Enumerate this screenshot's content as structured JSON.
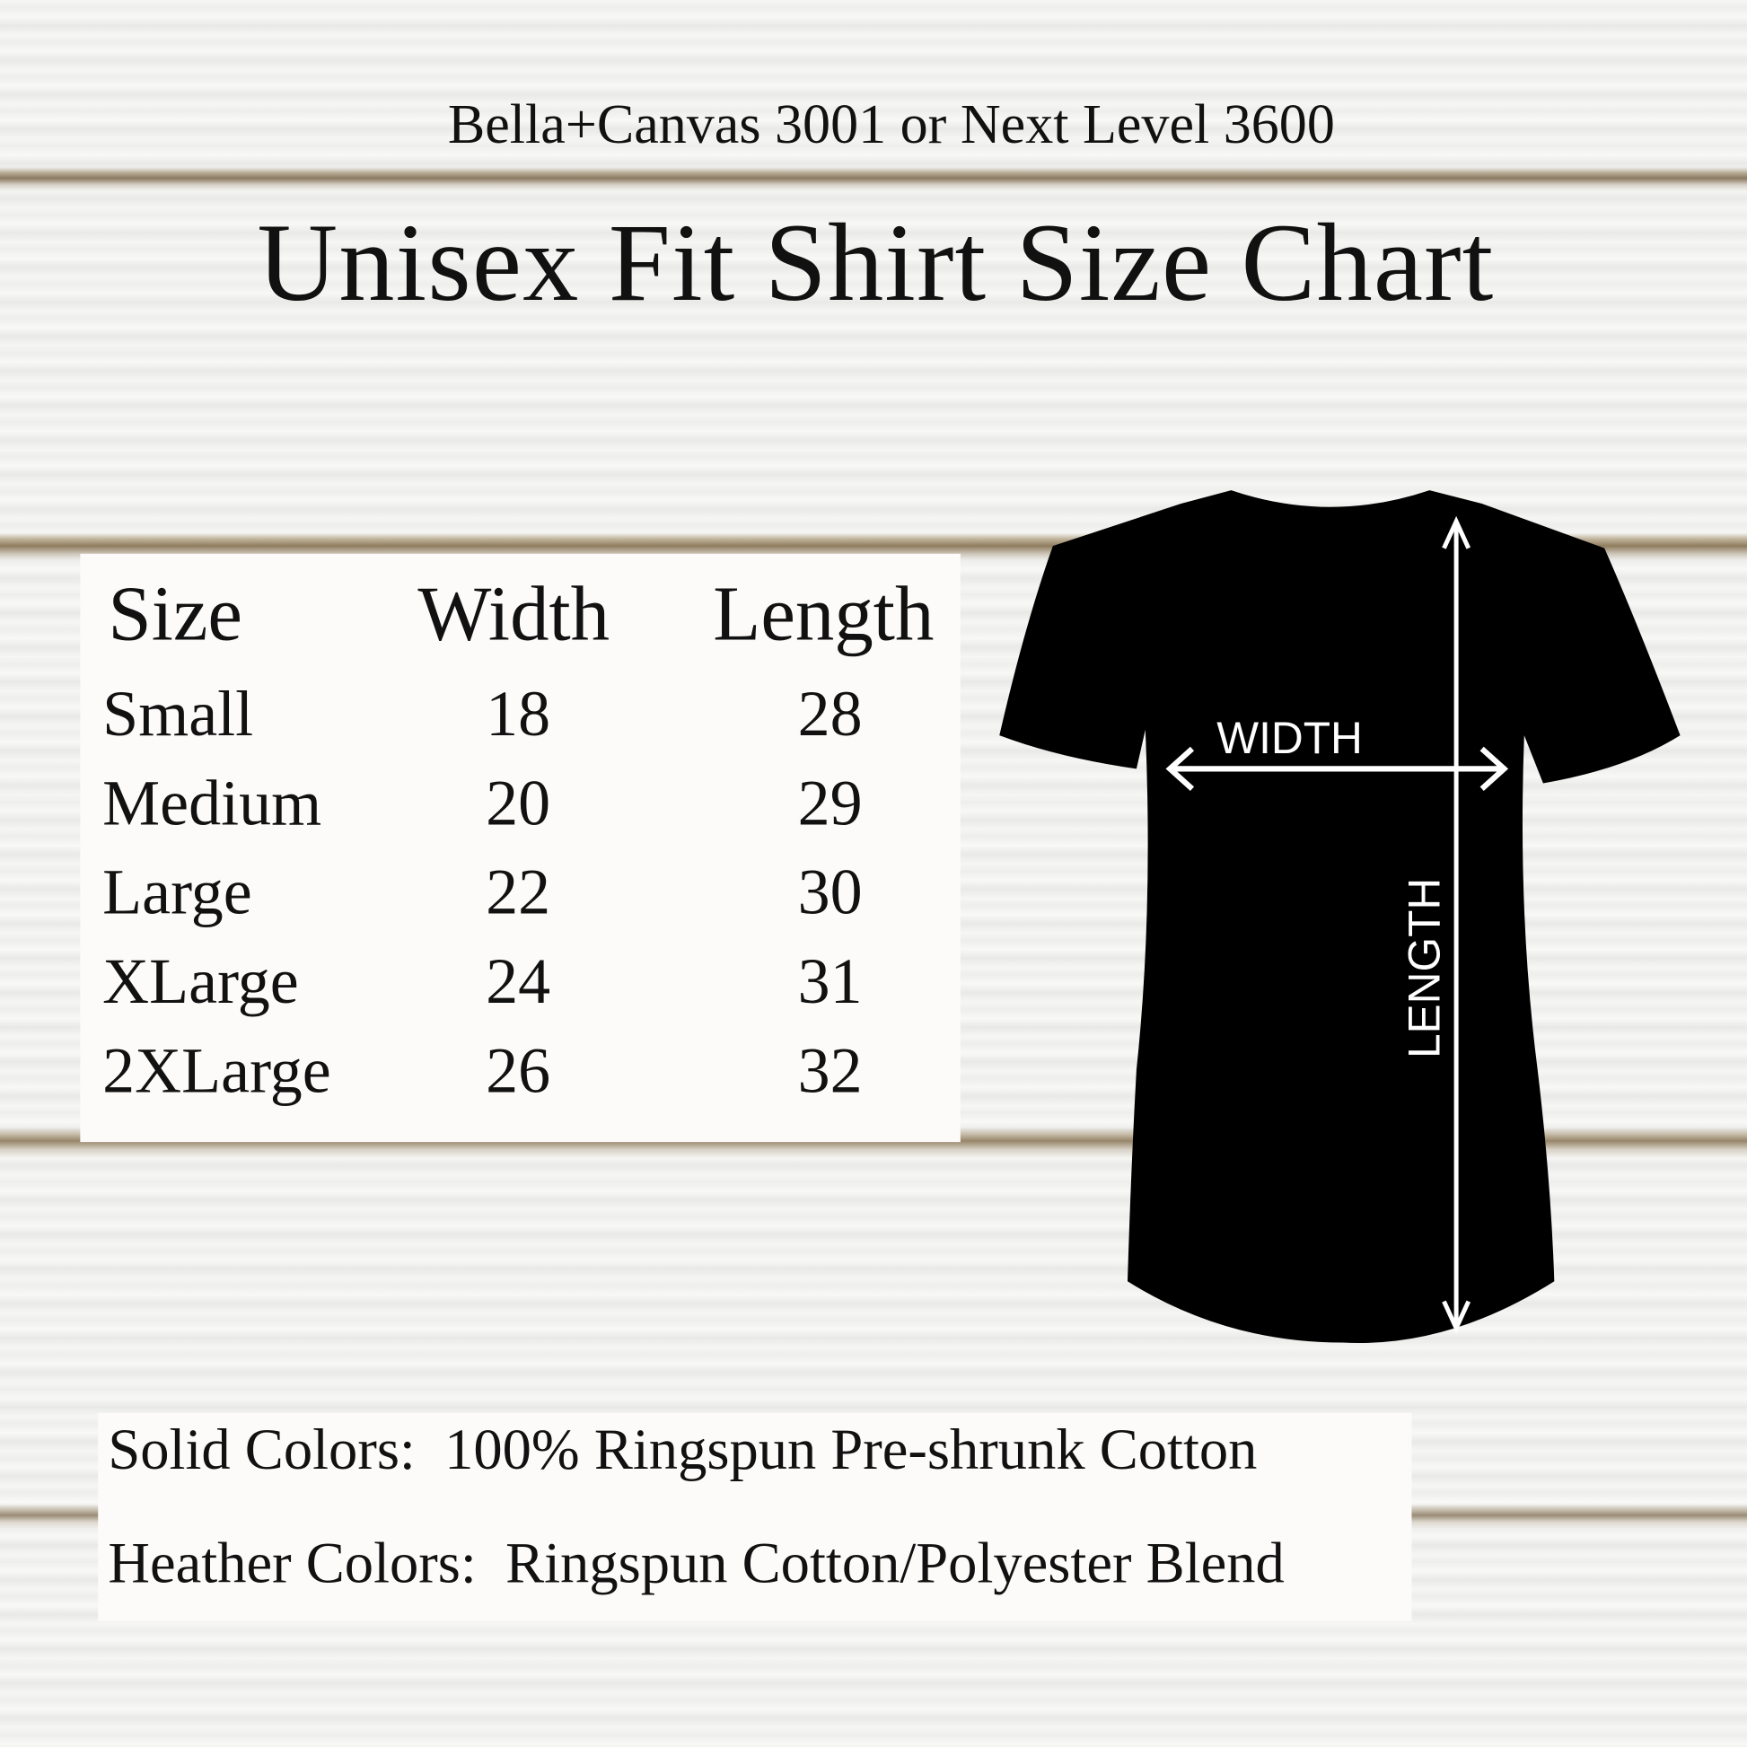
{
  "header": {
    "subtitle": "Bella+Canvas 3001 or Next Level 3600",
    "title": "Unisex Fit Shirt Size Chart"
  },
  "size_table": {
    "columns": [
      "Size",
      "Width",
      "Length"
    ],
    "rows": [
      {
        "size": "Small",
        "width": "18",
        "length": "28"
      },
      {
        "size": "Medium",
        "width": "20",
        "length": "29"
      },
      {
        "size": "Large",
        "width": "22",
        "length": "30"
      },
      {
        "size": "XLarge",
        "width": "24",
        "length": "31"
      },
      {
        "size": "2XLarge",
        "width": "26",
        "length": "32"
      }
    ]
  },
  "diagram": {
    "width_label": "WIDTH",
    "length_label": "LENGTH",
    "shirt_color": "#000000"
  },
  "fabric_notes": [
    "Solid Colors:  100% Ringspun Pre-shrunk Cotton",
    "Heather Colors:  Ringspun Cotton/Polyester Blend"
  ]
}
